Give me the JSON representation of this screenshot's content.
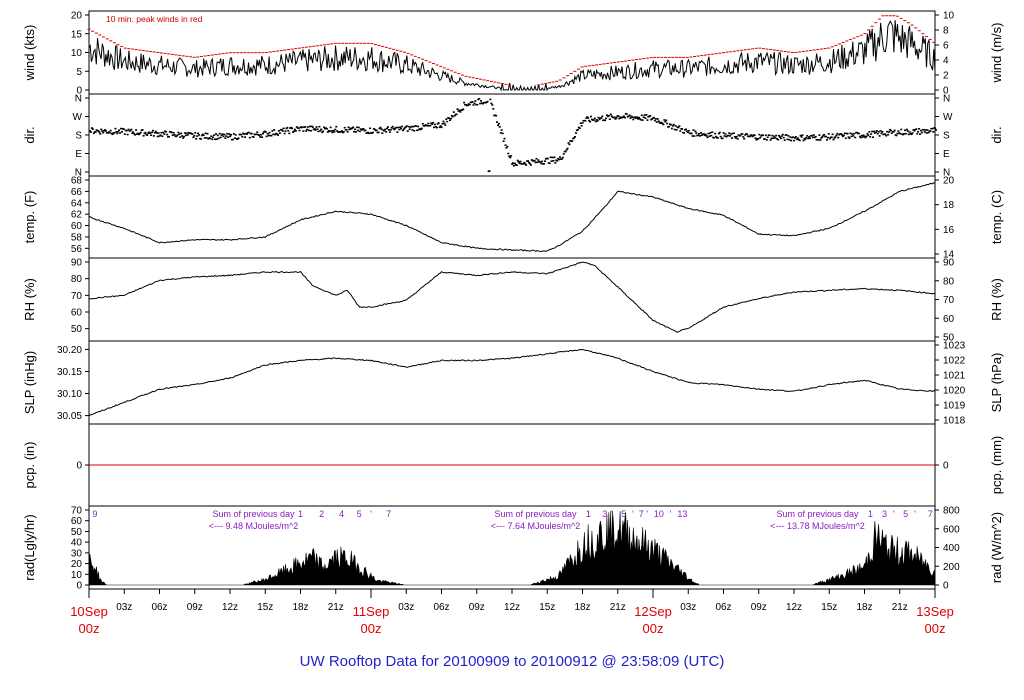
{
  "title": "UW Rooftop Data for 20100909  to  20100912 @ 23:58:09  (UTC)",
  "colors": {
    "primary": "#000000",
    "peak": "#dd0000",
    "zero_line": "#dd0000",
    "title": "#2222cc",
    "date": "#e00000",
    "radiation_annotation": "#8a1cbf"
  },
  "chart_data": [
    {
      "type": "line",
      "id": "wind",
      "ylabel_left": "wind (kts)",
      "ylabel_right": "wind (m/s)",
      "ylim": [
        0,
        20
      ],
      "yticks_left": [
        "0",
        "5",
        "10",
        "15",
        "20"
      ],
      "yticks_right": [
        "0",
        "2",
        "4",
        "6",
        "8",
        "10"
      ],
      "annotation": "10 min. peak winds in red",
      "x_hours": [
        0,
        3,
        6,
        9,
        12,
        15,
        18,
        21,
        24,
        27,
        30,
        32,
        34,
        36,
        38,
        40,
        42,
        45,
        48,
        51,
        54,
        57,
        60,
        63,
        66,
        68,
        70,
        72
      ],
      "values": [
        12,
        8,
        7,
        6,
        7,
        7,
        8,
        9,
        9,
        7,
        4,
        2,
        1,
        0,
        0,
        1,
        4,
        5,
        6,
        6,
        7,
        8,
        7,
        8,
        11,
        16,
        13,
        9
      ],
      "series": [
        {
          "name": "wind speed",
          "color": "#000000"
        },
        {
          "name": "10 min. peak winds",
          "color": "#dd0000"
        }
      ]
    },
    {
      "type": "scatter",
      "id": "dir",
      "ylabel_left": "dir.",
      "ylabel_right": "dir.",
      "ylim": [
        0,
        360
      ],
      "yticks_left": [
        "N",
        "E",
        "S",
        "W",
        "N"
      ],
      "yticks_right": [
        "N",
        "E",
        "S",
        "W",
        "N"
      ],
      "x_hours": [
        0,
        3,
        6,
        9,
        12,
        15,
        18,
        21,
        24,
        27,
        30,
        32,
        34,
        36,
        38,
        40,
        42,
        45,
        48,
        51,
        54,
        57,
        60,
        63,
        66,
        68,
        70,
        72
      ],
      "values": [
        200,
        195,
        185,
        175,
        170,
        185,
        210,
        205,
        200,
        210,
        230,
        330,
        350,
        40,
        50,
        60,
        250,
        270,
        260,
        190,
        175,
        170,
        165,
        170,
        180,
        190,
        195,
        200
      ]
    },
    {
      "type": "line",
      "id": "temp",
      "ylabel_left": "temp. (F)",
      "ylabel_right": "temp. (C)",
      "ylim": [
        55,
        68
      ],
      "yticks_left": [
        "56",
        "58",
        "60",
        "62",
        "64",
        "66",
        "68"
      ],
      "yticks_right": [
        "14",
        "16",
        "18",
        "20"
      ],
      "x_hours": [
        0,
        3,
        6,
        9,
        12,
        15,
        18,
        21,
        24,
        27,
        30,
        33,
        36,
        39,
        40,
        42,
        44,
        45,
        48,
        51,
        54,
        57,
        60,
        63,
        66,
        69,
        72
      ],
      "values": [
        61.5,
        59.5,
        57,
        57.5,
        57.5,
        58,
        61,
        62.5,
        62,
        60,
        57,
        56,
        55.7,
        55.5,
        56.5,
        59,
        63.5,
        66,
        65,
        63,
        61.8,
        58.5,
        58.2,
        59.5,
        62.5,
        66,
        67.5
      ]
    },
    {
      "type": "line",
      "id": "rh",
      "ylabel_left": "RH (%)",
      "ylabel_right": "RH (%)",
      "ylim": [
        45,
        90
      ],
      "yticks_left": [
        "50",
        "60",
        "70",
        "80",
        "90"
      ],
      "yticks_right": [
        "50",
        "60",
        "70",
        "80",
        "90"
      ],
      "x_hours": [
        0,
        3,
        6,
        9,
        12,
        15,
        18,
        19,
        21,
        22,
        23,
        24,
        27,
        30,
        33,
        36,
        39,
        42,
        43,
        45,
        48,
        50,
        51,
        54,
        57,
        60,
        63,
        66,
        69,
        72
      ],
      "values": [
        68,
        70,
        79,
        81,
        82,
        84,
        84,
        76,
        70,
        73,
        63,
        63,
        67,
        84,
        82,
        84,
        83,
        90,
        88,
        75,
        55,
        48,
        50,
        63,
        68,
        72,
        73,
        74,
        73,
        71
      ]
    },
    {
      "type": "line",
      "id": "slp",
      "ylabel_left": "SLP (inHg)",
      "ylabel_right": "SLP (hPa)",
      "ylim": [
        30.04,
        30.21
      ],
      "yticks_left": [
        "30.05",
        "30.10",
        "30.15",
        "30.20"
      ],
      "yticks_right": [
        "1018",
        "1019",
        "1020",
        "1021",
        "1022",
        "1023"
      ],
      "x_hours": [
        0,
        3,
        6,
        9,
        12,
        15,
        18,
        21,
        24,
        27,
        30,
        33,
        36,
        39,
        42,
        45,
        48,
        51,
        54,
        57,
        60,
        63,
        66,
        69,
        72
      ],
      "values": [
        30.05,
        30.08,
        30.11,
        30.12,
        30.135,
        30.165,
        30.175,
        30.18,
        30.175,
        30.16,
        30.175,
        30.175,
        30.18,
        30.19,
        30.2,
        30.18,
        30.15,
        30.125,
        30.12,
        30.11,
        30.105,
        30.12,
        30.13,
        30.11,
        30.105
      ]
    },
    {
      "type": "line",
      "id": "pcp",
      "ylabel_left": "pcp. (in)",
      "ylabel_right": "pcp. (mm)",
      "yticks_left": [
        "0"
      ],
      "yticks_right": [
        "0"
      ],
      "x_hours": [
        0,
        72
      ],
      "values": [
        0,
        0
      ]
    },
    {
      "type": "area",
      "id": "rad",
      "ylabel_left": "rad(Lgly/hr)",
      "ylabel_right": "rad (W/m^2)",
      "ylim": [
        0,
        70
      ],
      "yticks_left": [
        "0",
        "10",
        "20",
        "30",
        "40",
        "50",
        "60",
        "70"
      ],
      "yticks_right": [
        "0",
        "200",
        "400",
        "600",
        "800"
      ],
      "x_hours": [
        0,
        0.5,
        1,
        1.5,
        13,
        15,
        17,
        19,
        20,
        21,
        22,
        23,
        24.5,
        27,
        27.5,
        37.5,
        40,
        42,
        44,
        45,
        46,
        48,
        51.5,
        52,
        61.5,
        64,
        66,
        67,
        68,
        70,
        72
      ],
      "values": [
        30,
        20,
        5,
        0,
        0,
        6,
        18,
        30,
        20,
        30,
        30,
        20,
        5,
        0,
        0,
        0,
        10,
        45,
        60,
        65,
        55,
        40,
        3,
        0,
        0,
        10,
        20,
        55,
        40,
        35,
        15
      ],
      "daily_sums": [
        "<--- 9.48 MJoules/m^2",
        "<--- 7.64 MJoules/m^2",
        "<--- 13.78 MJoules/m^2"
      ],
      "daily_sum_heading": "Sum of previous day",
      "daily_counts": [
        {
          "hour": 0.5,
          "label": "9"
        },
        {
          "hour": 18,
          "label": "1"
        },
        {
          "hour": 19.8,
          "label": "2"
        },
        {
          "hour": 21.5,
          "label": "4"
        },
        {
          "hour": 23,
          "label": "5"
        },
        {
          "hour": 24,
          "label": "'"
        },
        {
          "hour": 25.5,
          "label": "7"
        },
        {
          "hour": 42.5,
          "label": "1"
        },
        {
          "hour": 43.9,
          "label": "3"
        },
        {
          "hour": 44.5,
          "label": "'"
        },
        {
          "hour": 45.5,
          "label": "5"
        },
        {
          "hour": 46.3,
          "label": "'"
        },
        {
          "hour": 47,
          "label": "7"
        },
        {
          "hour": 47.5,
          "label": "'"
        },
        {
          "hour": 48.5,
          "label": "10"
        },
        {
          "hour": 49.5,
          "label": "'"
        },
        {
          "hour": 50.5,
          "label": "13"
        },
        {
          "hour": 66.5,
          "label": "1"
        },
        {
          "hour": 67.7,
          "label": "3"
        },
        {
          "hour": 68.5,
          "label": "'"
        },
        {
          "hour": 69.5,
          "label": "5"
        },
        {
          "hour": 70.3,
          "label": "'"
        },
        {
          "hour": 71.6,
          "label": "7"
        }
      ]
    }
  ],
  "x_axis": {
    "range_hours": [
      0,
      72
    ],
    "hour_ticks": [
      {
        "hour": 3,
        "label": "03z"
      },
      {
        "hour": 6,
        "label": "06z"
      },
      {
        "hour": 9,
        "label": "09z"
      },
      {
        "hour": 12,
        "label": "12z"
      },
      {
        "hour": 15,
        "label": "15z"
      },
      {
        "hour": 18,
        "label": "18z"
      },
      {
        "hour": 21,
        "label": "21z"
      },
      {
        "hour": 27,
        "label": "03z"
      },
      {
        "hour": 30,
        "label": "06z"
      },
      {
        "hour": 33,
        "label": "09z"
      },
      {
        "hour": 36,
        "label": "12z"
      },
      {
        "hour": 39,
        "label": "15z"
      },
      {
        "hour": 42,
        "label": "18z"
      },
      {
        "hour": 45,
        "label": "21z"
      },
      {
        "hour": 51,
        "label": "03z"
      },
      {
        "hour": 54,
        "label": "06z"
      },
      {
        "hour": 57,
        "label": "09z"
      },
      {
        "hour": 60,
        "label": "12z"
      },
      {
        "hour": 63,
        "label": "15z"
      },
      {
        "hour": 66,
        "label": "18z"
      },
      {
        "hour": 69,
        "label": "21z"
      }
    ],
    "date_ticks": [
      {
        "hour": 0,
        "day": "10Sep",
        "time": "00z"
      },
      {
        "hour": 24,
        "day": "11Sep",
        "time": "00z"
      },
      {
        "hour": 48,
        "day": "12Sep",
        "time": "00z"
      },
      {
        "hour": 72,
        "day": "13Sep",
        "time": "00z"
      }
    ]
  }
}
